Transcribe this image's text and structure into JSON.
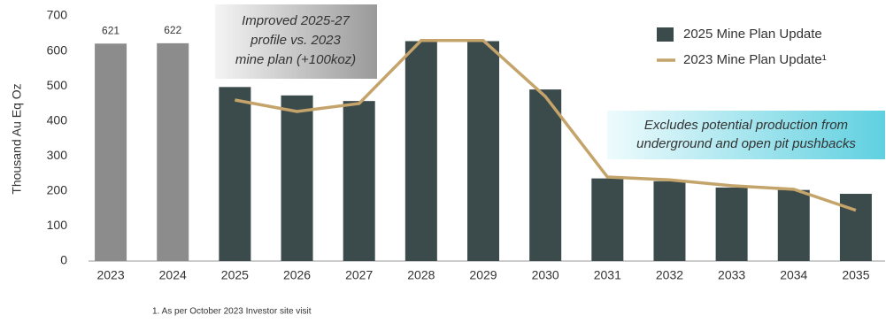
{
  "chart_data": {
    "type": "bar_line",
    "ylabel": "Thousand  Au Eq Oz",
    "categories": [
      "2023",
      "2024",
      "2025",
      "2026",
      "2027",
      "2028",
      "2029",
      "2030",
      "2031",
      "2032",
      "2033",
      "2034",
      "2035"
    ],
    "ylim": [
      0,
      700
    ],
    "yticks": [
      0,
      100,
      200,
      300,
      400,
      500,
      600,
      700
    ],
    "series": [
      {
        "name": "2025 Mine Plan Update",
        "type": "bar",
        "color": "#3b4a4b",
        "colors": [
          "#8c8c8c",
          "#8c8c8c",
          "#3b4a4b",
          "#3b4a4b",
          "#3b4a4b",
          "#3b4a4b",
          "#3b4a4b",
          "#3b4a4b",
          "#3b4a4b",
          "#3b4a4b",
          "#3b4a4b",
          "#3b4a4b",
          "#3b4a4b"
        ],
        "values": [
          621,
          622,
          497,
          473,
          457,
          628,
          628,
          490,
          236,
          228,
          210,
          203,
          192
        ],
        "value_labels": [
          "621",
          "622",
          null,
          null,
          null,
          null,
          null,
          null,
          null,
          null,
          null,
          null,
          null
        ]
      },
      {
        "name": "2023 Mine Plan Update¹",
        "type": "line",
        "color": "#c4a46a",
        "values": [
          null,
          null,
          460,
          427,
          450,
          630,
          630,
          470,
          240,
          232,
          215,
          205,
          145
        ]
      }
    ],
    "annotations": [
      {
        "lines": [
          "Improved 2025-27",
          "profile vs. 2023",
          "mine plan (+100koz)"
        ]
      },
      {
        "lines": [
          "Excludes potential production from",
          "underground and open pit pushbacks"
        ]
      }
    ],
    "footnote": "1. As per October 2023 Investor site visit"
  }
}
